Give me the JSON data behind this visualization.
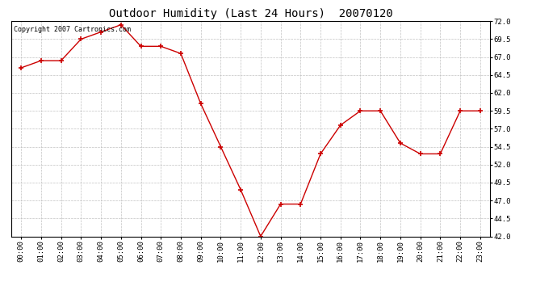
{
  "title": "Outdoor Humidity (Last 24 Hours)  20070120",
  "copyright_text": "Copyright 2007 Cartronics.com",
  "x_labels": [
    "00:00",
    "01:00",
    "02:00",
    "03:00",
    "04:00",
    "05:00",
    "06:00",
    "07:00",
    "08:00",
    "09:00",
    "10:00",
    "11:00",
    "12:00",
    "13:00",
    "14:00",
    "15:00",
    "16:00",
    "17:00",
    "18:00",
    "19:00",
    "20:00",
    "21:00",
    "22:00",
    "23:00"
  ],
  "x_values": [
    0,
    1,
    2,
    3,
    4,
    5,
    6,
    7,
    8,
    9,
    10,
    11,
    12,
    13,
    14,
    15,
    16,
    17,
    18,
    19,
    20,
    21,
    22,
    23
  ],
  "y_values": [
    65.5,
    66.5,
    66.5,
    69.5,
    70.5,
    71.5,
    68.5,
    68.5,
    67.5,
    60.5,
    54.5,
    48.5,
    42.0,
    46.5,
    46.5,
    53.5,
    57.5,
    59.5,
    59.5,
    55.0,
    53.5,
    53.5,
    59.5,
    59.5
  ],
  "line_color": "#cc0000",
  "marker_color": "#cc0000",
  "background_color": "#ffffff",
  "grid_color": "#bbbbbb",
  "ylim_min": 42.0,
  "ylim_max": 72.0,
  "ytick_values": [
    42.0,
    44.5,
    47.0,
    49.5,
    52.0,
    54.5,
    57.0,
    59.5,
    62.0,
    64.5,
    67.0,
    69.5,
    72.0
  ],
  "title_fontsize": 10,
  "copyright_fontsize": 6,
  "tick_fontsize": 6.5
}
